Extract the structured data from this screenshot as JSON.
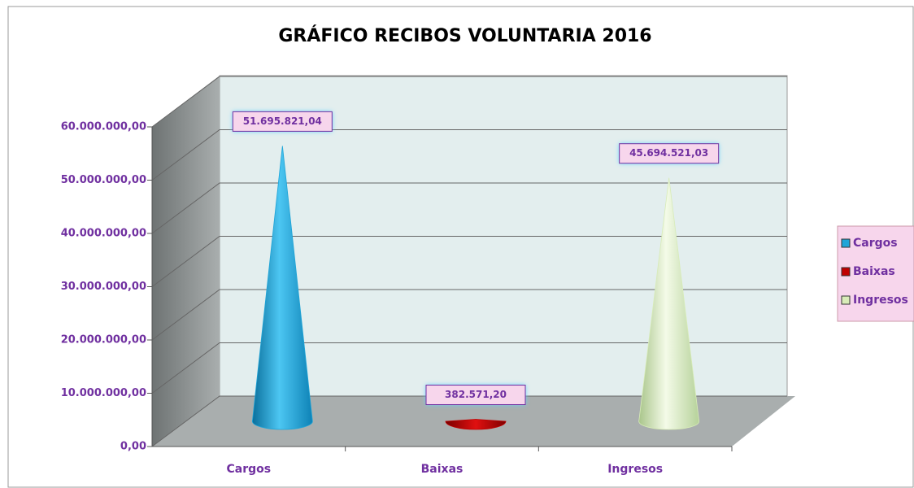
{
  "chart_data": {
    "type": "cone3d",
    "title": "GRÁFICO RECIBOS VOLUNTARIA 2016",
    "categories": [
      "Cargos",
      "Baixas",
      "Ingresos"
    ],
    "values": [
      51695821.04,
      382571.2,
      45694521.03
    ],
    "value_labels": [
      "51.695.821,04",
      "382.571,20",
      "45.694.521,03"
    ],
    "colors": [
      "#1fa5d8",
      "#c00000",
      "#d8ecb8"
    ],
    "ylim": [
      0,
      60000000
    ],
    "yticks": [
      {
        "value": 0,
        "label": "0,00"
      },
      {
        "value": 10000000,
        "label": "10.000.000,00"
      },
      {
        "value": 20000000,
        "label": "20.000.000,00"
      },
      {
        "value": 30000000,
        "label": "30.000.000,00"
      },
      {
        "value": 40000000,
        "label": "40.000.000,00"
      },
      {
        "value": 50000000,
        "label": "50.000.000,00"
      },
      {
        "value": 60000000,
        "label": "60.000.000,00"
      }
    ],
    "grid": true,
    "legend": "right"
  }
}
